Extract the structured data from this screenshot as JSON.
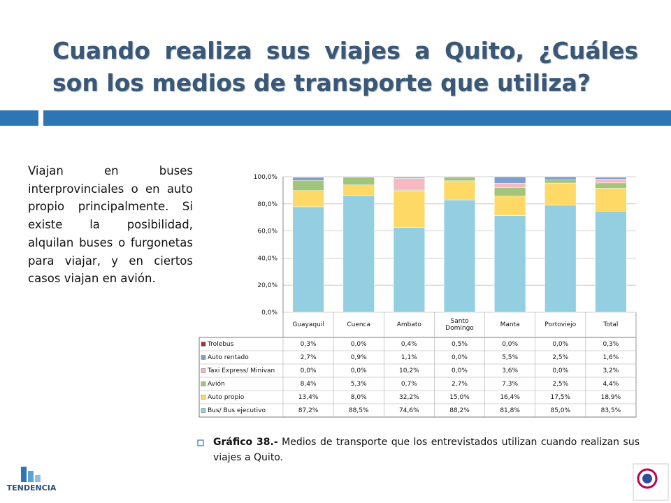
{
  "title": "Cuando realiza sus viajes a Quito, ¿Cuáles son los medios de transporte que utiliza?",
  "body_text": "Viajan en buses interprovinciales o en auto propio principalmente. Si existe la posibilidad, alquilan buses o furgonetas para viajar, y en ciertos casos viajan en avión.",
  "caption_label": "Gráfico 38.-",
  "caption_text": "Medios de transporte que los entrevistados utilizan cuando realizan sus viajes a Quito.",
  "logo_text": "TENDENCIA",
  "chart_data": {
    "type": "bar",
    "stack": "percent",
    "categories": [
      "Guayaquil",
      "Cuenca",
      "Ambato",
      "Santo Domingo",
      "Manta",
      "Portoviejo",
      "Total"
    ],
    "series": [
      {
        "name": "Trolebus",
        "color": "#953735",
        "values": [
          0.3,
          0.0,
          0.4,
          0.5,
          0.0,
          0.0,
          0.3
        ],
        "value_labels": [
          "0,3%",
          "0,0%",
          "0,4%",
          "0,5%",
          "0,0%",
          "0,0%",
          "0,3%"
        ]
      },
      {
        "name": "Auto rentado",
        "color": "#7f9fcf",
        "values": [
          2.7,
          0.9,
          1.1,
          0.0,
          5.5,
          2.5,
          1.6
        ],
        "value_labels": [
          "2,7%",
          "0,9%",
          "1,1%",
          "0,0%",
          "5,5%",
          "2,5%",
          "1,6%"
        ]
      },
      {
        "name": "Taxi Express/ Minivan",
        "color": "#f6b9c2",
        "values": [
          0.0,
          0.0,
          10.2,
          0.0,
          3.6,
          0.0,
          3.2
        ],
        "value_labels": [
          "0,0%",
          "0,0%",
          "10,2%",
          "0,0%",
          "3,6%",
          "0,0%",
          "3,2%"
        ]
      },
      {
        "name": "Avión",
        "color": "#a3c57a",
        "values": [
          8.4,
          5.3,
          0.7,
          2.7,
          7.3,
          2.5,
          4.4
        ],
        "value_labels": [
          "8,4%",
          "5,3%",
          "0,7%",
          "2,7%",
          "7,3%",
          "2,5%",
          "4,4%"
        ]
      },
      {
        "name": "Auto propio",
        "color": "#ffd966",
        "values": [
          13.4,
          8.0,
          32.2,
          15.0,
          16.4,
          17.5,
          18.9
        ],
        "value_labels": [
          "13,4%",
          "8,0%",
          "32,2%",
          "15,0%",
          "16,4%",
          "17,5%",
          "18,9%"
        ]
      },
      {
        "name": "Bus/ Bus ejecutivo",
        "color": "#93cfe0",
        "values": [
          87.2,
          88.5,
          74.6,
          88.2,
          81.8,
          85.0,
          83.5
        ],
        "value_labels": [
          "87,2%",
          "88,5%",
          "74,6%",
          "88,2%",
          "81,8%",
          "85,0%",
          "83,5%"
        ]
      }
    ],
    "ylim": [
      0,
      100
    ],
    "yticks": [
      {
        "value": 0,
        "label": "0,0%"
      },
      {
        "value": 20,
        "label": "20,0%"
      },
      {
        "value": 40,
        "label": "40,0%"
      },
      {
        "value": 60,
        "label": "60,0%"
      },
      {
        "value": 80,
        "label": "80,0%"
      },
      {
        "value": 100,
        "label": "100,0%"
      }
    ]
  }
}
